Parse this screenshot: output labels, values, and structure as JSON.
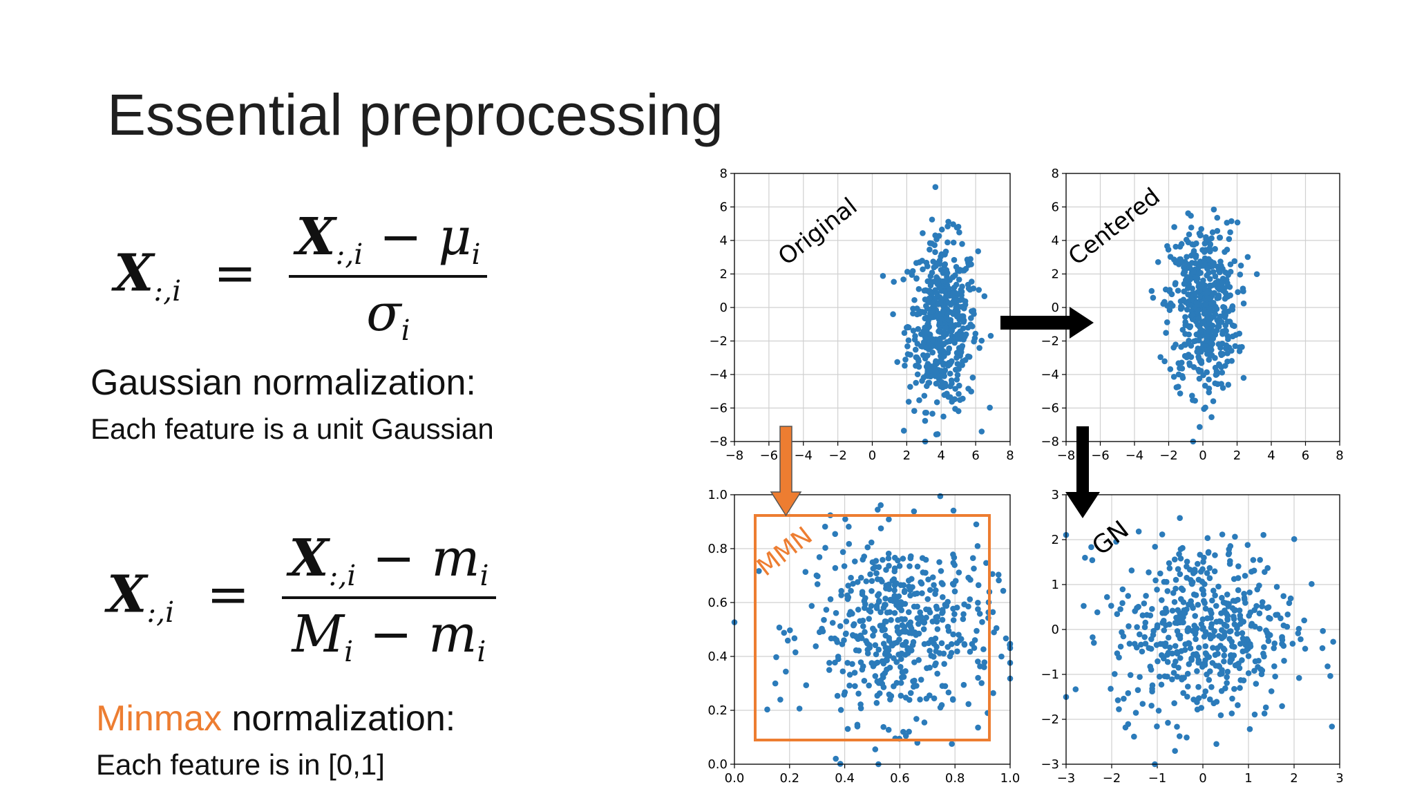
{
  "title": "Essential preprocessing",
  "equations": {
    "gaussian": {
      "lhs_sym": "X",
      "lhs_sub": ":,i",
      "num_sym": "X",
      "num_sub": ":,i",
      "num_minus": " − ",
      "num_term": "μ",
      "num_term_sub": "i",
      "den_term": "σ",
      "den_term_sub": "i"
    },
    "minmax": {
      "lhs_sym": "X",
      "lhs_sub": ":,i",
      "num_sym": "X",
      "num_sub": ":,i",
      "num_minus": " − ",
      "num_term": "m",
      "num_term_sub": "i",
      "den_a": "M",
      "den_a_sub": "i",
      "den_minus": " − ",
      "den_b": "m",
      "den_b_sub": "i"
    }
  },
  "captions": {
    "gaussian_head": "Gaussian normalization:",
    "gaussian_sub": "Each feature is a unit Gaussian",
    "minmax_highlight": "Minmax",
    "minmax_rest": " normalization:",
    "minmax_sub": "Each feature is in [0,1]"
  },
  "colors": {
    "points": "#2b7bba",
    "accent": "#ed7d31",
    "arrow": "#000000",
    "grid": "#d0d0d0"
  },
  "chart_data": [
    {
      "type": "scatter",
      "label": "Original",
      "xlim": [
        -8,
        8
      ],
      "ylim": [
        -8,
        8
      ],
      "xticks": [
        "−8",
        "−6",
        "−4",
        "−2",
        "0",
        "2",
        "4",
        "6",
        "8"
      ],
      "yticks": [
        "−8",
        "−6",
        "−4",
        "−2",
        "0",
        "2",
        "4",
        "6",
        "8"
      ],
      "grid": true,
      "distribution": {
        "x_mean": 4.1,
        "x_std": 1.0,
        "y_mean": -1.0,
        "y_std": 2.5,
        "n": 500
      }
    },
    {
      "type": "scatter",
      "label": "Centered",
      "xlim": [
        -8,
        8
      ],
      "ylim": [
        -8,
        8
      ],
      "xticks": [
        "−8",
        "−6",
        "−4",
        "−2",
        "0",
        "2",
        "4",
        "6",
        "8"
      ],
      "yticks": [
        "−8",
        "−6",
        "−4",
        "−2",
        "0",
        "2",
        "4",
        "6",
        "8"
      ],
      "grid": true,
      "distribution": {
        "x_mean": 0.0,
        "x_std": 1.0,
        "y_mean": 0.0,
        "y_std": 2.5,
        "n": 500
      }
    },
    {
      "type": "scatter",
      "label": "MMN",
      "xlim": [
        0.0,
        1.0
      ],
      "ylim": [
        0.0,
        1.0
      ],
      "xticks": [
        "0.0",
        "0.2",
        "0.4",
        "0.6",
        "0.8",
        "1.0"
      ],
      "yticks": [
        "0.0",
        "0.2",
        "0.4",
        "0.6",
        "0.8",
        "1.0"
      ],
      "grid": true,
      "distribution": {
        "x_mean": 0.6,
        "x_std": 0.17,
        "y_mean": 0.5,
        "y_std": 0.17,
        "n": 500
      }
    },
    {
      "type": "scatter",
      "label": "GN",
      "xlim": [
        -3,
        3
      ],
      "ylim": [
        -3,
        3
      ],
      "xticks": [
        "−3",
        "−2",
        "−1",
        "0",
        "1",
        "2",
        "3"
      ],
      "yticks": [
        "−3",
        "−2",
        "−1",
        "0",
        "1",
        "2",
        "3"
      ],
      "grid": true,
      "distribution": {
        "x_mean": 0.0,
        "x_std": 1.0,
        "y_mean": 0.0,
        "y_std": 1.0,
        "n": 500
      }
    }
  ]
}
